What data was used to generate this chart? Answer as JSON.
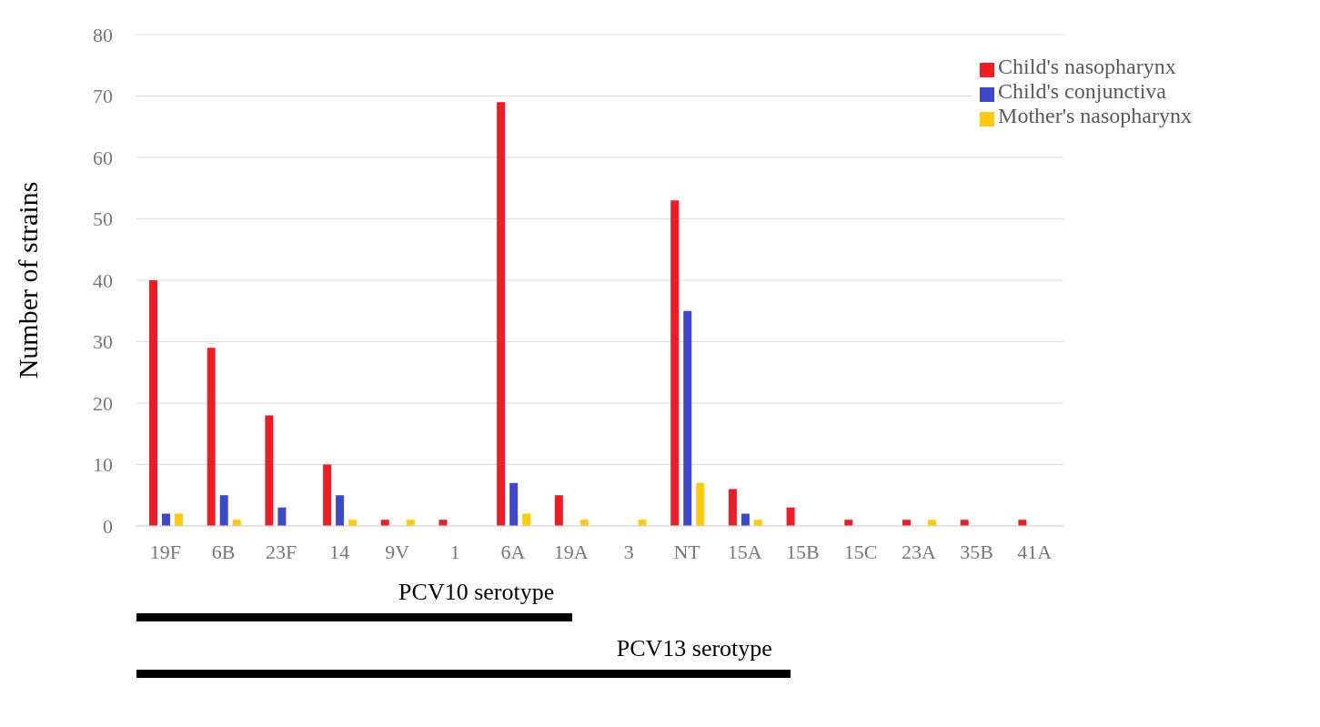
{
  "chart_data": {
    "type": "bar",
    "categories": [
      "19F",
      "6B",
      "23F",
      "14",
      "9V",
      "1",
      "6A",
      "19A",
      "3",
      "NT",
      "15A",
      "15B",
      "15C",
      "23A",
      "35B",
      "41A"
    ],
    "series": [
      {
        "name": "Child's nasopharynx",
        "color": "#ee1c25",
        "values": [
          40,
          29,
          18,
          10,
          1,
          1,
          69,
          5,
          0,
          53,
          6,
          3,
          1,
          1,
          1,
          1
        ]
      },
      {
        "name": "Child's conjunctiva",
        "color": "#3f48cc",
        "values": [
          2,
          5,
          3,
          5,
          0,
          0,
          7,
          0,
          0,
          35,
          2,
          0,
          0,
          0,
          0,
          0
        ]
      },
      {
        "name": "Mother's nasopharynx",
        "color": "#ffc90e",
        "values": [
          2,
          1,
          0,
          1,
          1,
          0,
          2,
          1,
          1,
          7,
          1,
          0,
          0,
          1,
          0,
          0
        ]
      }
    ],
    "ylabel": "Number of strains",
    "ylim": [
      0,
      80
    ],
    "yticks": [
      0,
      10,
      20,
      30,
      40,
      50,
      60,
      70,
      80
    ],
    "grid": "y",
    "legend": "top right",
    "annotations": [
      "PCV10 serotype",
      "PCV13 serotype"
    ]
  }
}
